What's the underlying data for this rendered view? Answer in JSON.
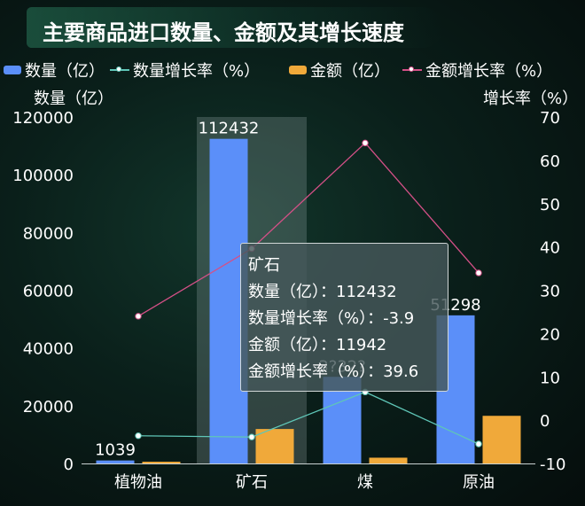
{
  "title": "主要商品进口数量、金额及其增长速度",
  "legend": [
    {
      "label": "数量（亿）",
      "kind": "bar",
      "color": "#5b8ff9"
    },
    {
      "label": "数量增长率（%）",
      "kind": "line",
      "color": "#5fc6b7"
    },
    {
      "label": "金额（亿）",
      "kind": "bar",
      "color": "#f0a93a"
    },
    {
      "label": "金额增长率（%）",
      "kind": "line",
      "color": "#d45087"
    }
  ],
  "chart_data": {
    "type": "bar",
    "categories": [
      "植物油",
      "矿石",
      "煤",
      "原油"
    ],
    "series": [
      {
        "name": "数量（亿）",
        "type": "bar",
        "axis": "left",
        "values": [
          1039,
          112432,
          30000,
          51298
        ],
        "color": "#5b8ff9"
      },
      {
        "name": "金额（亿）",
        "type": "bar",
        "axis": "left",
        "values": [
          600,
          11942,
          2000,
          16500
        ],
        "color": "#f0a93a"
      },
      {
        "name": "数量增长率（%）",
        "type": "line",
        "axis": "right",
        "values": [
          -3.6,
          -3.9,
          6.5,
          -5.5
        ],
        "color": "#5fc6b7"
      },
      {
        "name": "金额增长率（%）",
        "type": "line",
        "axis": "right",
        "values": [
          24,
          39.6,
          64,
          34
        ],
        "color": "#d45087"
      }
    ],
    "left_axis": {
      "label": "数量（亿）",
      "range": [
        0,
        120000
      ],
      "ticks": [
        "0",
        "20000",
        "40000",
        "60000",
        "80000",
        "100000",
        "120000"
      ]
    },
    "right_axis": {
      "label": "增长率（%）",
      "range": [
        -10,
        70
      ],
      "ticks": [
        "-10",
        "0",
        "10",
        "20",
        "30",
        "40",
        "50",
        "60",
        "70"
      ]
    },
    "data_labels": [
      {
        "category": "植物油",
        "text": "1039"
      },
      {
        "category": "矿石",
        "text": "112432"
      },
      {
        "category": "煤",
        "text": "3?32?"
      },
      {
        "category": "原油",
        "text": "51298"
      }
    ],
    "highlighted_category": "矿石",
    "tooltip": {
      "title": "矿石",
      "rows": [
        "数量（亿）：112432",
        "数量增长率（%）：-3.9",
        "金额（亿）：11942",
        "金额增长率（%）：39.6"
      ]
    }
  }
}
